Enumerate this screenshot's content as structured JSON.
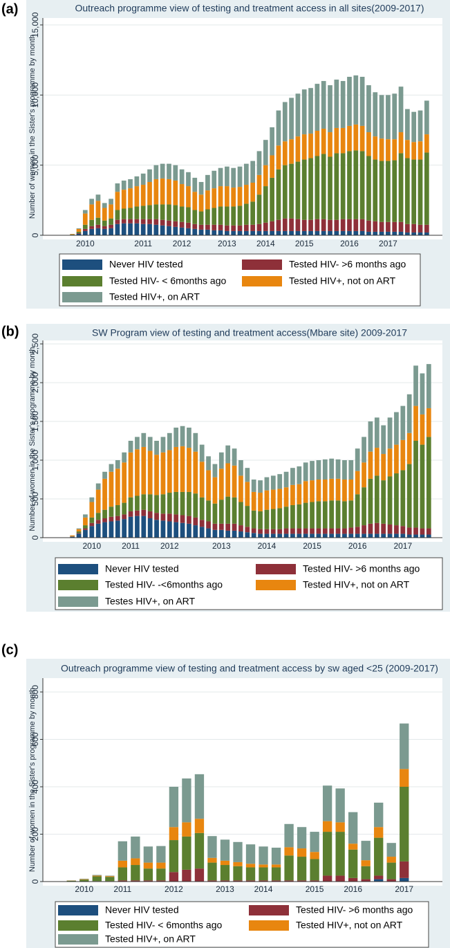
{
  "chart_data": [
    {
      "type": "bar",
      "stacked": true,
      "panel": "(a)",
      "title": "Outreach programme view of testing and treatment access in all sites(2009-2017)",
      "y_label": "Number of women in the Sister's programme by month",
      "grid": true,
      "ylim": [
        0,
        15000
      ],
      "yticks": [
        0,
        {
          "value": 5000,
          "label": "5,000"
        },
        {
          "value": 10000,
          "label": "10,000"
        },
        {
          "value": 15000,
          "label": "15,000"
        }
      ],
      "categories": [
        null,
        null,
        "2010",
        null,
        null,
        null,
        null,
        null,
        null,
        null,
        null,
        "2011",
        null,
        null,
        null,
        null,
        null,
        "2012",
        null,
        null,
        null,
        null,
        null,
        null,
        "2013",
        null,
        null,
        null,
        null,
        null,
        "2014",
        null,
        null,
        null,
        null,
        null,
        "2015",
        null,
        null,
        null,
        null,
        null,
        null,
        "2016",
        null,
        null,
        null,
        null,
        null,
        "2017",
        null,
        null,
        null,
        null,
        null,
        null
      ],
      "series": [
        {
          "name": "Never HIV tested",
          "color": "#1d4f7e",
          "values": [
            20,
            100,
            300,
            450,
            500,
            450,
            500,
            800,
            850,
            850,
            850,
            800,
            800,
            750,
            700,
            650,
            600,
            550,
            500,
            450,
            400,
            400,
            350,
            350,
            300,
            300,
            300,
            300,
            300,
            300,
            300,
            300,
            300,
            300,
            300,
            300,
            300,
            300,
            300,
            300,
            300,
            300,
            300,
            300,
            300,
            300,
            250,
            250,
            250,
            250,
            250,
            250,
            200,
            200,
            200,
            200
          ]
        },
        {
          "name": "Tested HIV- >6 months ago",
          "color": "#8e3039",
          "values": [
            10,
            50,
            150,
            200,
            250,
            200,
            250,
            300,
            300,
            300,
            300,
            350,
            350,
            400,
            400,
            400,
            400,
            400,
            400,
            350,
            350,
            350,
            400,
            400,
            400,
            400,
            400,
            450,
            450,
            500,
            600,
            700,
            800,
            900,
            900,
            850,
            800,
            800,
            850,
            850,
            800,
            800,
            850,
            850,
            850,
            850,
            800,
            750,
            700,
            700,
            700,
            700,
            600,
            600,
            550,
            550
          ]
        },
        {
          "name": "Tested HIV- < 6months ago",
          "color": "#5b7f2f",
          "values": [
            20,
            100,
            300,
            450,
            500,
            400,
            450,
            700,
            750,
            800,
            900,
            950,
            1000,
            1050,
            1100,
            1150,
            1150,
            1100,
            1100,
            1000,
            950,
            1100,
            1200,
            1300,
            1350,
            1350,
            1400,
            1500,
            1650,
            2100,
            2600,
            3100,
            3600,
            3800,
            3900,
            4100,
            4300,
            4400,
            4500,
            4650,
            4500,
            4750,
            4700,
            4850,
            4900,
            4850,
            4600,
            4400,
            4350,
            4350,
            4400,
            4900,
            4700,
            4600,
            4650,
            5150
          ]
        },
        {
          "name": "Tested HIV+, not on ART",
          "color": "#e8860f",
          "values": [
            40,
            200,
            800,
            1100,
            1200,
            900,
            1000,
            1300,
            1350,
            1400,
            1450,
            1500,
            1650,
            1800,
            1850,
            1800,
            1750,
            1600,
            1500,
            1300,
            1200,
            1350,
            1400,
            1450,
            1450,
            1350,
            1350,
            1350,
            1350,
            1400,
            1500,
            1600,
            1700,
            1700,
            1750,
            1800,
            1800,
            1750,
            1800,
            1800,
            1750,
            1800,
            1800,
            1800,
            1850,
            1800,
            1700,
            1650,
            1600,
            1550,
            1500,
            1500,
            1300,
            1250,
            1300,
            1300
          ]
        },
        {
          "name": "Tested HIV+, on ART",
          "color": "#7b9a90",
          "values": [
            10,
            50,
            250,
            400,
            450,
            350,
            400,
            600,
            650,
            650,
            700,
            800,
            900,
            1000,
            1050,
            1100,
            1100,
            1050,
            1000,
            1000,
            900,
            1100,
            1250,
            1300,
            1400,
            1400,
            1450,
            1500,
            1550,
            1700,
            1800,
            2000,
            2500,
            2800,
            2950,
            3050,
            3200,
            3250,
            3350,
            3400,
            3350,
            3450,
            3350,
            3500,
            3500,
            3500,
            3350,
            3150,
            3100,
            3150,
            3250,
            3250,
            2200,
            2150,
            2200,
            2400
          ]
        }
      ]
    },
    {
      "type": "bar",
      "stacked": true,
      "panel": "(b)",
      "title": "SW Program view of testing and treatment access(Mbare site) 2009-2017",
      "y_label": "Number of women in the Sister's programme by month",
      "grid": true,
      "ylim": [
        0,
        2500
      ],
      "yticks": [
        0,
        500,
        {
          "value": 1000,
          "label": "1,000"
        },
        {
          "value": 1500,
          "label": "1,500"
        },
        {
          "value": 2000,
          "label": "2,000"
        },
        {
          "value": 2500,
          "label": "2,500"
        }
      ],
      "categories": [
        null,
        null,
        null,
        "2010",
        null,
        null,
        null,
        null,
        null,
        "2011",
        null,
        null,
        null,
        null,
        null,
        "2012",
        null,
        null,
        null,
        null,
        null,
        null,
        null,
        "2013",
        null,
        null,
        null,
        null,
        null,
        null,
        "2014",
        null,
        null,
        null,
        null,
        null,
        null,
        "2015",
        null,
        null,
        null,
        null,
        null,
        null,
        "2016",
        null,
        null,
        null,
        null,
        null,
        null,
        "2017",
        null,
        null,
        null,
        null
      ],
      "series": [
        {
          "name": "Never HIV tested",
          "color": "#1d4f7e",
          "values": [
            10,
            50,
            100,
            150,
            180,
            200,
            210,
            220,
            240,
            270,
            280,
            280,
            250,
            230,
            220,
            210,
            200,
            190,
            180,
            160,
            140,
            120,
            100,
            100,
            90,
            90,
            80,
            70,
            60,
            50,
            50,
            50,
            50,
            50,
            50,
            50,
            50,
            50,
            50,
            50,
            50,
            50,
            50,
            50,
            50,
            50,
            50,
            50,
            50,
            50,
            50,
            50,
            40,
            40,
            40,
            40
          ]
        },
        {
          "name": "Tested HIV- >6 months ago",
          "color": "#8e3039",
          "values": [
            5,
            10,
            20,
            40,
            50,
            50,
            60,
            60,
            60,
            70,
            70,
            80,
            90,
            90,
            90,
            100,
            100,
            100,
            100,
            100,
            90,
            90,
            80,
            80,
            90,
            90,
            80,
            70,
            60,
            60,
            60,
            60,
            60,
            70,
            70,
            70,
            70,
            70,
            70,
            70,
            70,
            70,
            70,
            80,
            90,
            110,
            130,
            140,
            130,
            120,
            110,
            100,
            90,
            90,
            80,
            80
          ]
        },
        {
          "name": "Tested HIV- -<6months ago",
          "color": "#5b7f2f",
          "values": [
            5,
            20,
            40,
            70,
            90,
            110,
            130,
            140,
            150,
            180,
            190,
            200,
            220,
            230,
            250,
            270,
            290,
            300,
            310,
            310,
            290,
            270,
            260,
            310,
            350,
            340,
            300,
            270,
            230,
            230,
            250,
            260,
            270,
            280,
            300,
            310,
            330,
            340,
            350,
            350,
            360,
            360,
            350,
            350,
            420,
            490,
            580,
            610,
            560,
            620,
            670,
            720,
            820,
            1120,
            1080,
            1180
          ]
        },
        {
          "name": "Tested HIV+, not on ART",
          "color": "#e8860f",
          "values": [
            10,
            30,
            100,
            200,
            300,
            400,
            450,
            470,
            520,
            580,
            600,
            610,
            560,
            520,
            540,
            550,
            580,
            590,
            570,
            540,
            460,
            390,
            340,
            400,
            430,
            410,
            340,
            310,
            240,
            240,
            250,
            250,
            250,
            250,
            260,
            260,
            280,
            280,
            280,
            280,
            280,
            280,
            280,
            270,
            300,
            320,
            350,
            360,
            340,
            360,
            370,
            390,
            400,
            450,
            390,
            370
          ]
        },
        {
          "name": "Testes HIV+, on ART",
          "color": "#7b9a90",
          "values": [
            0,
            10,
            40,
            60,
            80,
            90,
            100,
            110,
            130,
            150,
            160,
            180,
            180,
            180,
            200,
            220,
            250,
            260,
            260,
            240,
            220,
            180,
            170,
            210,
            230,
            220,
            200,
            180,
            160,
            160,
            170,
            180,
            190,
            200,
            220,
            230,
            240,
            250,
            250,
            260,
            260,
            250,
            250,
            250,
            290,
            330,
            390,
            390,
            370,
            400,
            420,
            440,
            500,
            520,
            530,
            570
          ]
        }
      ]
    },
    {
      "type": "bar",
      "stacked": true,
      "panel": "(c)",
      "title": "Outreach programme view of testing and treatment access by sw aged <25 (2009-2017)",
      "y_label": "Number of women in the Sister's programme by month",
      "grid": true,
      "ylim": [
        0,
        800
      ],
      "yticks": [
        0,
        200,
        400,
        600,
        800
      ],
      "categories": [
        null,
        "2010",
        null,
        null,
        "2011",
        null,
        null,
        null,
        "2012",
        null,
        null,
        null,
        "2013",
        null,
        null,
        "2014",
        null,
        null,
        null,
        "2015",
        null,
        null,
        "2016",
        null,
        null,
        null,
        "2017"
      ],
      "series": [
        {
          "name": "Never HIV tested",
          "color": "#1d4f7e",
          "values": [
            0,
            0,
            0,
            0,
            0,
            0,
            0,
            0,
            0,
            0,
            0,
            0,
            0,
            0,
            0,
            0,
            0,
            0,
            0,
            0,
            0,
            0,
            0,
            0,
            10,
            0,
            15
          ]
        },
        {
          "name": "Tested HIV- >6 months ago",
          "color": "#8e3039",
          "values": [
            0,
            0,
            2,
            2,
            5,
            5,
            5,
            5,
            40,
            50,
            55,
            5,
            5,
            5,
            5,
            5,
            5,
            5,
            5,
            5,
            25,
            25,
            15,
            10,
            15,
            10,
            70
          ]
        },
        {
          "name": "Tested HIV- < 6months ago",
          "color": "#5b7f2f",
          "values": [
            3,
            8,
            20,
            18,
            55,
            65,
            50,
            50,
            135,
            140,
            150,
            75,
            65,
            60,
            55,
            55,
            55,
            105,
            100,
            90,
            185,
            185,
            120,
            55,
            160,
            70,
            315
          ]
        },
        {
          "name": "Tested HIV+, not on ART",
          "color": "#e8860f",
          "values": [
            1,
            2,
            3,
            3,
            28,
            28,
            25,
            25,
            55,
            60,
            60,
            20,
            18,
            17,
            15,
            12,
            12,
            35,
            35,
            30,
            45,
            40,
            25,
            25,
            45,
            25,
            75
          ]
        },
        {
          "name": "Tested HIV+, on ART",
          "color": "#7b9a90",
          "values": [
            1,
            2,
            3,
            2,
            82,
            92,
            68,
            70,
            170,
            185,
            188,
            92,
            89,
            85,
            82,
            76,
            71,
            98,
            90,
            85,
            150,
            143,
            133,
            82,
            103,
            58,
            192
          ]
        }
      ]
    }
  ]
}
